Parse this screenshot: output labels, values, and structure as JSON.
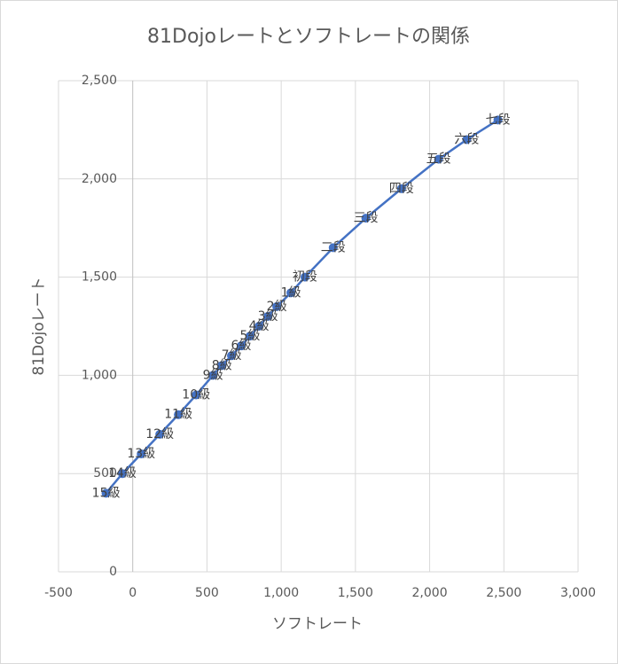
{
  "chart_data": {
    "type": "line",
    "title": "81Dojoレートとソフトレートの関係",
    "x_label": "ソフトレート",
    "y_label": "81Dojoレート",
    "x": [
      -180,
      -70,
      57,
      182,
      307,
      427,
      540,
      600,
      665,
      730,
      790,
      850,
      910,
      970,
      1065,
      1160,
      1350,
      1570,
      1810,
      2060,
      2250,
      2460
    ],
    "series": [
      {
        "name": "81Dojoレート",
        "color": "#4472c4",
        "values": [
          400,
          500,
          600,
          700,
          800,
          900,
          1000,
          1050,
          1100,
          1150,
          1200,
          1250,
          1300,
          1350,
          1420,
          1500,
          1650,
          1800,
          1950,
          2100,
          2200,
          2300
        ],
        "point_labels": [
          "15級",
          "14級",
          "13級",
          "12級",
          "11級",
          "10級",
          "9級",
          "8級",
          "7級",
          "6級",
          "5級",
          "4級",
          "3級",
          "2級",
          "1級",
          "初段",
          "二段",
          "三段",
          "四段",
          "五段",
          "六段",
          "七段"
        ]
      }
    ],
    "xlim": [
      -500,
      3000
    ],
    "xticks": [
      -500,
      0,
      500,
      {
        "value": 1000,
        "label": "1,000"
      },
      {
        "value": 1500,
        "label": "1,500"
      },
      {
        "value": 2000,
        "label": "2,000"
      },
      {
        "value": 2500,
        "label": "2,500"
      },
      {
        "value": 3000,
        "label": "3,000"
      }
    ],
    "ylim": [
      0,
      2500
    ],
    "yticks": [
      0,
      500,
      {
        "value": 1000,
        "label": "1,000"
      },
      {
        "value": 1500,
        "label": "1,500"
      },
      {
        "value": 2000,
        "label": "2,000"
      },
      {
        "value": 2500,
        "label": "2,500"
      }
    ],
    "grid": true
  }
}
